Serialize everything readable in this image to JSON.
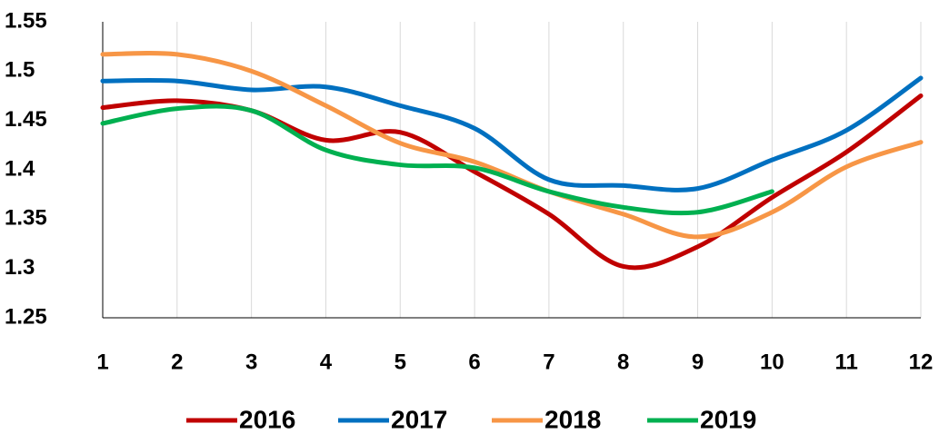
{
  "chart_data": {
    "type": "line",
    "x": [
      1,
      2,
      3,
      4,
      5,
      6,
      7,
      8,
      9,
      10,
      11,
      12
    ],
    "series": [
      {
        "name": "2016",
        "color": "#c00000",
        "values": [
          1.463,
          1.47,
          1.46,
          1.43,
          1.438,
          1.398,
          1.355,
          1.302,
          1.322,
          1.372,
          1.418,
          1.475
        ]
      },
      {
        "name": "2017",
        "color": "#0070c0",
        "values": [
          1.49,
          1.49,
          1.481,
          1.484,
          1.465,
          1.442,
          1.39,
          1.384,
          1.381,
          1.41,
          1.44,
          1.493
        ]
      },
      {
        "name": "2018",
        "color": "#f79646",
        "values": [
          1.517,
          1.517,
          1.5,
          1.465,
          1.427,
          1.408,
          1.378,
          1.355,
          1.332,
          1.357,
          1.403,
          1.428
        ]
      },
      {
        "name": "2019",
        "color": "#00b050",
        "values": [
          1.447,
          1.462,
          1.46,
          1.42,
          1.405,
          1.402,
          1.378,
          1.362,
          1.357,
          1.378,
          null,
          null
        ]
      }
    ],
    "xlim": [
      1,
      12
    ],
    "xticks": [
      1,
      2,
      3,
      4,
      5,
      6,
      7,
      8,
      9,
      10,
      11,
      12
    ],
    "ylim": [
      1.25,
      1.55
    ],
    "yticks": [
      1.25,
      1.3,
      1.35,
      1.4,
      1.45,
      1.5,
      1.55
    ],
    "xgrid": true,
    "legend": "bottom"
  }
}
